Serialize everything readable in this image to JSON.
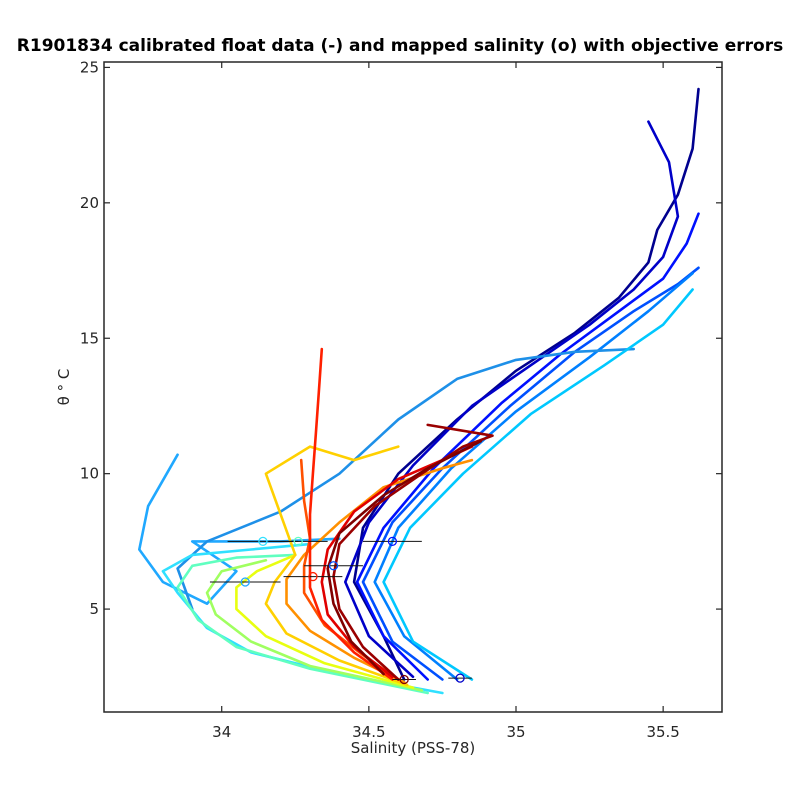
{
  "chart_data": {
    "type": "line",
    "title": "R1901834 calibrated float data (-) and mapped salinity (o) with objective errors",
    "xlabel": "Salinity (PSS-78)",
    "ylabel": "θ ° C",
    "xlim": [
      33.6,
      35.7
    ],
    "ylim": [
      1.2,
      25.2
    ],
    "xticks": [
      34,
      34.5,
      35,
      35.5
    ],
    "xtick_labels": [
      "34",
      "34.5",
      "35",
      "35.5"
    ],
    "yticks": [
      5,
      10,
      15,
      20,
      25
    ],
    "ytick_labels": [
      "5",
      "10",
      "15",
      "20",
      "25"
    ],
    "grid": false,
    "colormap": "jet",
    "series": [
      {
        "color": "#00008f",
        "points": [
          [
            34.62,
            2.4
          ],
          [
            34.55,
            4.0
          ],
          [
            34.45,
            6.0
          ],
          [
            34.48,
            8.0
          ],
          [
            34.6,
            10.0
          ],
          [
            34.8,
            12.0
          ],
          [
            35.0,
            13.8
          ],
          [
            35.2,
            15.2
          ],
          [
            35.35,
            16.5
          ],
          [
            35.45,
            17.8
          ],
          [
            35.48,
            19.0
          ],
          [
            35.55,
            20.3
          ],
          [
            35.6,
            22.0
          ],
          [
            35.62,
            24.2
          ]
        ]
      },
      {
        "color": "#0000c8",
        "points": [
          [
            34.65,
            2.5
          ],
          [
            34.5,
            4.0
          ],
          [
            34.42,
            6.0
          ],
          [
            34.5,
            8.2
          ],
          [
            34.65,
            10.3
          ],
          [
            34.85,
            12.5
          ],
          [
            35.05,
            14.0
          ],
          [
            35.25,
            15.5
          ],
          [
            35.4,
            16.8
          ],
          [
            35.5,
            18.0
          ],
          [
            35.55,
            19.5
          ],
          [
            35.52,
            21.5
          ],
          [
            35.45,
            23.0
          ]
        ]
      },
      {
        "color": "#0010ff",
        "points": [
          [
            34.7,
            2.4
          ],
          [
            34.55,
            4.0
          ],
          [
            34.46,
            6.0
          ],
          [
            34.55,
            8.0
          ],
          [
            34.72,
            10.2
          ],
          [
            34.95,
            12.6
          ],
          [
            35.15,
            14.4
          ],
          [
            35.35,
            16.0
          ],
          [
            35.5,
            17.2
          ],
          [
            35.58,
            18.5
          ],
          [
            35.62,
            19.6
          ]
        ]
      },
      {
        "color": "#0050ff",
        "points": [
          [
            34.75,
            2.4
          ],
          [
            34.58,
            3.8
          ],
          [
            34.48,
            6.0
          ],
          [
            34.58,
            8.2
          ],
          [
            34.75,
            10.2
          ],
          [
            34.98,
            12.5
          ],
          [
            35.2,
            14.5
          ],
          [
            35.4,
            16.0
          ],
          [
            35.55,
            17.0
          ],
          [
            35.62,
            17.6
          ]
        ]
      },
      {
        "color": "#0080ff",
        "points": [
          [
            34.8,
            2.4
          ],
          [
            34.62,
            4.0
          ],
          [
            34.52,
            6.0
          ],
          [
            34.6,
            8.0
          ],
          [
            34.78,
            10.2
          ],
          [
            35.0,
            12.3
          ],
          [
            35.25,
            14.3
          ],
          [
            35.45,
            16.0
          ],
          [
            35.6,
            17.4
          ]
        ]
      },
      {
        "color": "#20a8ff",
        "points": [
          [
            33.85,
            10.7
          ],
          [
            33.75,
            8.8
          ],
          [
            33.72,
            7.2
          ],
          [
            33.8,
            6.0
          ],
          [
            33.95,
            5.2
          ],
          [
            34.05,
            6.4
          ],
          [
            33.9,
            7.5
          ],
          [
            34.2,
            7.5
          ],
          [
            34.4,
            7.6
          ]
        ]
      },
      {
        "color": "#1e90e8",
        "points": [
          [
            33.9,
            5.0
          ],
          [
            33.85,
            6.5
          ],
          [
            33.95,
            7.5
          ],
          [
            34.2,
            8.6
          ],
          [
            34.4,
            10.0
          ],
          [
            34.6,
            12.0
          ],
          [
            34.8,
            13.5
          ],
          [
            35.0,
            14.2
          ],
          [
            35.2,
            14.5
          ],
          [
            35.4,
            14.6
          ]
        ]
      },
      {
        "color": "#00c8ff",
        "points": [
          [
            34.85,
            2.4
          ],
          [
            34.65,
            3.8
          ],
          [
            34.55,
            6.0
          ],
          [
            34.64,
            8.0
          ],
          [
            34.82,
            10.0
          ],
          [
            35.05,
            12.2
          ],
          [
            35.3,
            14.0
          ],
          [
            35.5,
            15.5
          ],
          [
            35.6,
            16.8
          ]
        ]
      },
      {
        "color": "#30e0ff",
        "points": [
          [
            34.75,
            1.9
          ],
          [
            34.4,
            2.6
          ],
          [
            34.1,
            3.4
          ],
          [
            33.95,
            4.3
          ],
          [
            33.85,
            5.6
          ],
          [
            33.8,
            6.4
          ],
          [
            33.9,
            7.0
          ],
          [
            34.1,
            7.2
          ],
          [
            34.3,
            7.4
          ]
        ]
      },
      {
        "color": "#60ffc0",
        "points": [
          [
            34.7,
            1.9
          ],
          [
            34.3,
            2.8
          ],
          [
            34.05,
            3.6
          ],
          [
            33.92,
            4.6
          ],
          [
            33.85,
            5.8
          ],
          [
            33.9,
            6.6
          ],
          [
            34.05,
            6.9
          ],
          [
            34.25,
            7.0
          ]
        ]
      },
      {
        "color": "#a0ff60",
        "points": [
          [
            34.68,
            2.0
          ],
          [
            34.3,
            2.9
          ],
          [
            34.1,
            3.8
          ],
          [
            33.98,
            4.8
          ],
          [
            33.95,
            5.6
          ],
          [
            34.0,
            6.4
          ],
          [
            34.15,
            6.8
          ]
        ]
      },
      {
        "color": "#e8ff10",
        "points": [
          [
            34.65,
            2.1
          ],
          [
            34.35,
            3.0
          ],
          [
            34.15,
            4.0
          ],
          [
            34.05,
            5.0
          ],
          [
            34.05,
            5.8
          ],
          [
            34.12,
            6.4
          ],
          [
            34.25,
            7.0
          ]
        ]
      },
      {
        "color": "#ffd000",
        "points": [
          [
            34.63,
            2.2
          ],
          [
            34.4,
            3.1
          ],
          [
            34.22,
            4.1
          ],
          [
            34.15,
            5.2
          ],
          [
            34.18,
            6.0
          ],
          [
            34.25,
            7.0
          ],
          [
            34.2,
            8.5
          ],
          [
            34.15,
            10.0
          ],
          [
            34.3,
            11.0
          ],
          [
            34.45,
            10.5
          ],
          [
            34.6,
            11.0
          ]
        ]
      },
      {
        "color": "#ff9000",
        "points": [
          [
            34.62,
            2.3
          ],
          [
            34.45,
            3.2
          ],
          [
            34.3,
            4.2
          ],
          [
            34.22,
            5.2
          ],
          [
            34.22,
            6.1
          ],
          [
            34.28,
            7.0
          ],
          [
            34.4,
            8.2
          ],
          [
            34.55,
            9.5
          ],
          [
            34.75,
            10.2
          ],
          [
            34.85,
            10.5
          ]
        ]
      },
      {
        "color": "#ff5000",
        "points": [
          [
            34.6,
            2.4
          ],
          [
            34.48,
            3.3
          ],
          [
            34.35,
            4.4
          ],
          [
            34.28,
            5.6
          ],
          [
            34.28,
            6.6
          ],
          [
            34.3,
            7.6
          ],
          [
            34.28,
            9.0
          ],
          [
            34.27,
            10.5
          ]
        ]
      },
      {
        "color": "#ff2000",
        "points": [
          [
            34.58,
            2.4
          ],
          [
            34.45,
            3.4
          ],
          [
            34.34,
            4.6
          ],
          [
            34.3,
            5.8
          ],
          [
            34.3,
            7.0
          ],
          [
            34.3,
            8.5
          ],
          [
            34.31,
            10.0
          ],
          [
            34.32,
            11.5
          ],
          [
            34.33,
            13.0
          ],
          [
            34.34,
            14.6
          ]
        ]
      },
      {
        "color": "#e00000",
        "points": [
          [
            34.58,
            2.5
          ],
          [
            34.45,
            3.6
          ],
          [
            34.36,
            4.8
          ],
          [
            34.34,
            6.0
          ],
          [
            34.36,
            7.2
          ],
          [
            34.45,
            8.6
          ],
          [
            34.6,
            9.8
          ],
          [
            34.75,
            10.5
          ],
          [
            34.85,
            11.0
          ]
        ]
      },
      {
        "color": "#9a0000",
        "points": [
          [
            34.6,
            2.4
          ],
          [
            34.48,
            3.6
          ],
          [
            34.4,
            5.0
          ],
          [
            34.38,
            6.2
          ],
          [
            34.4,
            7.4
          ],
          [
            34.52,
            8.8
          ],
          [
            34.68,
            10.0
          ],
          [
            34.82,
            11.0
          ],
          [
            34.92,
            11.4
          ],
          [
            34.7,
            11.8
          ]
        ]
      },
      {
        "color": "#800000",
        "points": [
          [
            34.55,
            2.6
          ],
          [
            34.44,
            3.8
          ],
          [
            34.38,
            5.2
          ],
          [
            34.36,
            6.5
          ],
          [
            34.4,
            7.8
          ],
          [
            34.55,
            9.2
          ],
          [
            34.7,
            10.2
          ],
          [
            34.88,
            11.2
          ]
        ]
      }
    ],
    "mapped": [
      {
        "s": 34.62,
        "t": 2.4,
        "err": 0.04,
        "color": "#800000"
      },
      {
        "s": 34.81,
        "t": 2.45,
        "err": 0.04,
        "color": "#0000c8"
      },
      {
        "s": 34.14,
        "t": 7.5,
        "err": 0.12,
        "color": "#30e0ff"
      },
      {
        "s": 34.26,
        "t": 7.5,
        "err": 0.1,
        "color": "#60ffc0"
      },
      {
        "s": 34.38,
        "t": 6.6,
        "err": 0.1,
        "color": "#0050ff"
      },
      {
        "s": 34.31,
        "t": 6.2,
        "err": 0.1,
        "color": "#ff2000"
      },
      {
        "s": 34.58,
        "t": 7.5,
        "err": 0.1,
        "color": "#0010ff"
      },
      {
        "s": 34.08,
        "t": 6.0,
        "err": 0.12,
        "color": "#20a8ff"
      }
    ]
  }
}
